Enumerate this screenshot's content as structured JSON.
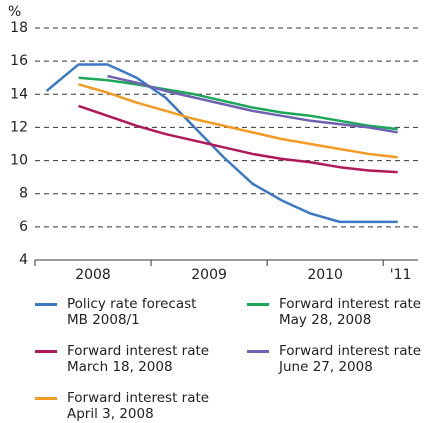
{
  "chart_data": {
    "type": "line",
    "y_unit": "%",
    "xlim": [
      2008,
      2011.3
    ],
    "xticks": [
      2008,
      2009,
      2010,
      2011
    ],
    "xlabels": [
      {
        "value": 2008.5,
        "label": "2008"
      },
      {
        "value": 2009.5,
        "label": "2009"
      },
      {
        "value": 2010.5,
        "label": "2010"
      },
      {
        "value": 2011.15,
        "label": "'11"
      }
    ],
    "ylim": [
      4,
      18
    ],
    "yticks": [
      4,
      6,
      8,
      10,
      12,
      14,
      16,
      18
    ],
    "grid": true,
    "series": [
      {
        "name": "Policy rate forecast MB 2008/1",
        "color": "#3a78c3",
        "x": [
          2008.1,
          2008.375,
          2008.625,
          2008.875,
          2009.125,
          2009.375,
          2009.625,
          2009.875,
          2010.125,
          2010.375,
          2010.625,
          2010.875,
          2011.125
        ],
        "values": [
          14.2,
          15.8,
          15.8,
          15.0,
          13.8,
          12.0,
          10.2,
          8.6,
          7.6,
          6.8,
          6.3,
          6.3,
          6.3
        ]
      },
      {
        "name": "Forward interest rate March 18, 2008",
        "color": "#b0185a",
        "x": [
          2008.375,
          2008.625,
          2008.875,
          2009.125,
          2009.375,
          2009.625,
          2009.875,
          2010.125,
          2010.375,
          2010.625,
          2010.875,
          2011.125
        ],
        "values": [
          13.3,
          12.7,
          12.1,
          11.6,
          11.2,
          10.8,
          10.4,
          10.1,
          9.9,
          9.6,
          9.4,
          9.3
        ]
      },
      {
        "name": "Forward interest rate April 3, 2008",
        "color": "#f39a23",
        "x": [
          2008.375,
          2008.625,
          2008.875,
          2009.125,
          2009.375,
          2009.625,
          2009.875,
          2010.125,
          2010.375,
          2010.625,
          2010.875,
          2011.125
        ],
        "values": [
          14.6,
          14.1,
          13.5,
          13.0,
          12.5,
          12.1,
          11.7,
          11.3,
          11.0,
          10.7,
          10.4,
          10.2
        ]
      },
      {
        "name": "Forward interest rate May 28, 2008",
        "color": "#1aa858",
        "x": [
          2008.375,
          2008.625,
          2008.875,
          2009.125,
          2009.375,
          2009.625,
          2009.875,
          2010.125,
          2010.375,
          2010.625,
          2010.875,
          2011.125
        ],
        "values": [
          15.0,
          14.85,
          14.6,
          14.3,
          14.0,
          13.6,
          13.2,
          12.9,
          12.7,
          12.4,
          12.1,
          11.9
        ]
      },
      {
        "name": "Forward interest rate June 27, 2008",
        "color": "#7062b0",
        "x": [
          2008.625,
          2008.875,
          2009.125,
          2009.375,
          2009.625,
          2009.875,
          2010.125,
          2010.375,
          2010.625,
          2010.875,
          2011.125
        ],
        "values": [
          15.1,
          14.7,
          14.2,
          13.8,
          13.4,
          13.0,
          12.7,
          12.4,
          12.2,
          12.0,
          11.7
        ]
      }
    ]
  }
}
